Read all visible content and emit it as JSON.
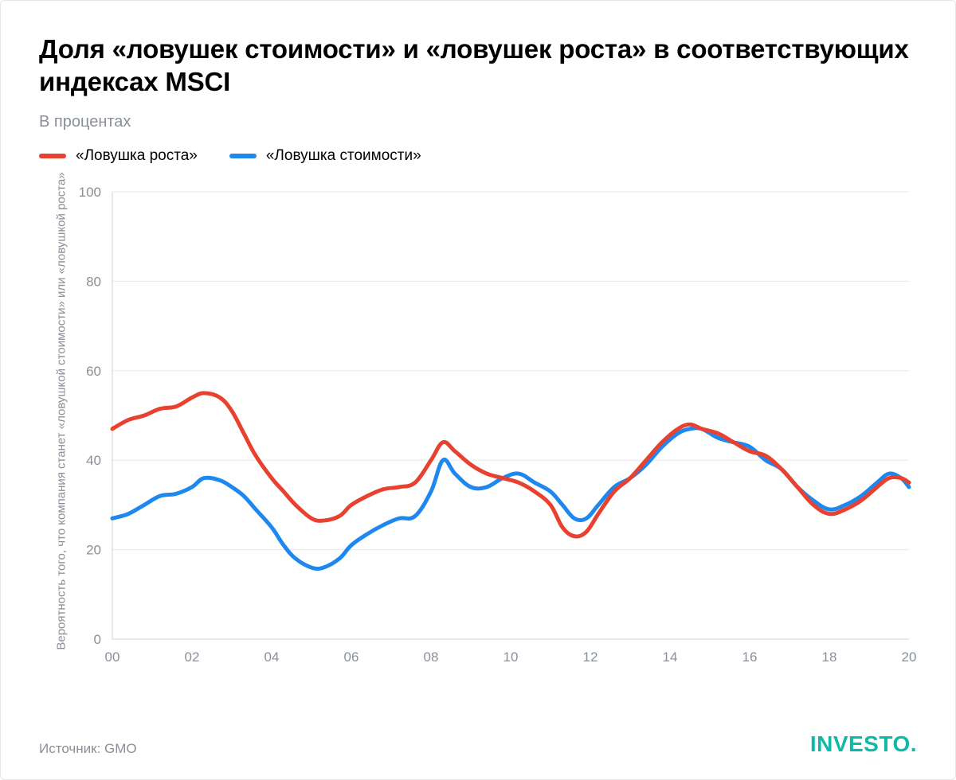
{
  "title": "Доля «ловушек стоимости» и «ловушек роста» в соответствующих индексах MSCI",
  "subtitle": "В процентах",
  "source_label": "Источник: GMO",
  "brand": "INVESTO.",
  "y_axis_label": "Вероятность того, что компания станет «ловушкой стоимости» или «ловушкой роста»",
  "chart": {
    "type": "line",
    "background_color": "#ffffff",
    "grid_color": "#e8e8e8",
    "axis_color": "#d0d0d0",
    "label_color": "#8a8f98",
    "ylim": [
      0,
      100
    ],
    "ytick_step": 20,
    "yticks": [
      0,
      20,
      40,
      60,
      80,
      100
    ],
    "xlim": [
      0,
      20
    ],
    "xtick_step": 2,
    "xticks": [
      "00",
      "02",
      "04",
      "06",
      "08",
      "10",
      "12",
      "14",
      "16",
      "18",
      "20"
    ],
    "line_width": 5,
    "tick_fontsize": 17,
    "title_fontsize": 33,
    "subtitle_fontsize": 20,
    "series": [
      {
        "name": "«Ловушка роста»",
        "color": "#e8412f",
        "data": [
          [
            0.0,
            47
          ],
          [
            0.4,
            49
          ],
          [
            0.8,
            50
          ],
          [
            1.2,
            51.5
          ],
          [
            1.6,
            52
          ],
          [
            2.0,
            54
          ],
          [
            2.3,
            55
          ],
          [
            2.7,
            54
          ],
          [
            3.0,
            51
          ],
          [
            3.3,
            46
          ],
          [
            3.6,
            41
          ],
          [
            4.0,
            36
          ],
          [
            4.3,
            33
          ],
          [
            4.6,
            30
          ],
          [
            5.0,
            27
          ],
          [
            5.3,
            26.5
          ],
          [
            5.7,
            27.5
          ],
          [
            6.0,
            30
          ],
          [
            6.4,
            32
          ],
          [
            6.8,
            33.5
          ],
          [
            7.2,
            34
          ],
          [
            7.6,
            35
          ],
          [
            8.0,
            40
          ],
          [
            8.3,
            44
          ],
          [
            8.6,
            42
          ],
          [
            9.0,
            39
          ],
          [
            9.4,
            37
          ],
          [
            9.8,
            36
          ],
          [
            10.2,
            35
          ],
          [
            10.6,
            33
          ],
          [
            11.0,
            30
          ],
          [
            11.3,
            25
          ],
          [
            11.6,
            23
          ],
          [
            11.9,
            24
          ],
          [
            12.2,
            28
          ],
          [
            12.6,
            33
          ],
          [
            13.0,
            36
          ],
          [
            13.4,
            40
          ],
          [
            13.8,
            44
          ],
          [
            14.2,
            47
          ],
          [
            14.5,
            48
          ],
          [
            14.8,
            47
          ],
          [
            15.2,
            46
          ],
          [
            15.6,
            44
          ],
          [
            16.0,
            42
          ],
          [
            16.4,
            41
          ],
          [
            16.8,
            38
          ],
          [
            17.2,
            34
          ],
          [
            17.6,
            30
          ],
          [
            18.0,
            28
          ],
          [
            18.4,
            29
          ],
          [
            18.8,
            31
          ],
          [
            19.2,
            34
          ],
          [
            19.5,
            36
          ],
          [
            19.8,
            36
          ],
          [
            20.0,
            35
          ]
        ]
      },
      {
        "name": "«Ловушка стоимости»",
        "color": "#1e88ef",
        "data": [
          [
            0.0,
            27
          ],
          [
            0.4,
            28
          ],
          [
            0.8,
            30
          ],
          [
            1.2,
            32
          ],
          [
            1.6,
            32.5
          ],
          [
            2.0,
            34
          ],
          [
            2.3,
            36
          ],
          [
            2.7,
            35.5
          ],
          [
            3.0,
            34
          ],
          [
            3.3,
            32
          ],
          [
            3.6,
            29
          ],
          [
            4.0,
            25
          ],
          [
            4.3,
            21
          ],
          [
            4.6,
            18
          ],
          [
            5.0,
            16
          ],
          [
            5.3,
            16
          ],
          [
            5.7,
            18
          ],
          [
            6.0,
            21
          ],
          [
            6.4,
            23.5
          ],
          [
            6.8,
            25.5
          ],
          [
            7.2,
            27
          ],
          [
            7.6,
            27.5
          ],
          [
            8.0,
            33
          ],
          [
            8.3,
            40
          ],
          [
            8.6,
            37
          ],
          [
            9.0,
            34
          ],
          [
            9.4,
            34
          ],
          [
            9.8,
            36
          ],
          [
            10.2,
            37
          ],
          [
            10.6,
            35
          ],
          [
            11.0,
            33
          ],
          [
            11.3,
            30
          ],
          [
            11.6,
            27
          ],
          [
            11.9,
            27
          ],
          [
            12.2,
            30
          ],
          [
            12.6,
            34
          ],
          [
            13.0,
            36
          ],
          [
            13.4,
            39
          ],
          [
            13.8,
            43
          ],
          [
            14.2,
            46
          ],
          [
            14.5,
            47
          ],
          [
            14.8,
            47
          ],
          [
            15.2,
            45
          ],
          [
            15.6,
            44
          ],
          [
            16.0,
            43
          ],
          [
            16.4,
            40
          ],
          [
            16.8,
            38
          ],
          [
            17.2,
            34
          ],
          [
            17.6,
            31
          ],
          [
            18.0,
            29
          ],
          [
            18.4,
            30
          ],
          [
            18.8,
            32
          ],
          [
            19.2,
            35
          ],
          [
            19.5,
            37
          ],
          [
            19.8,
            36
          ],
          [
            20.0,
            34
          ]
        ]
      }
    ]
  }
}
